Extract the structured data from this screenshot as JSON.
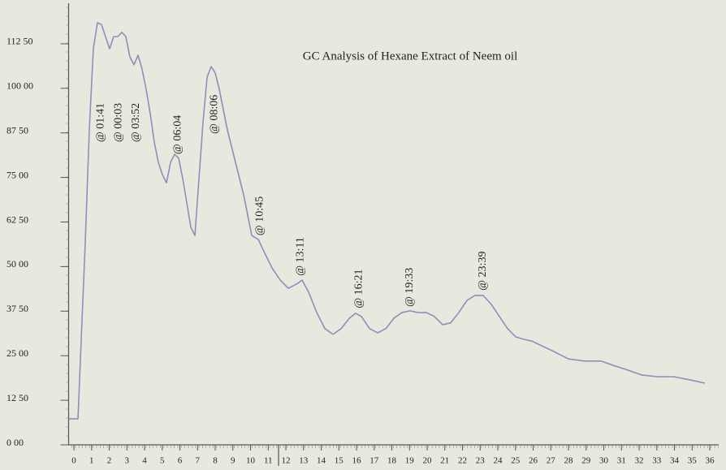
{
  "chart_data": {
    "type": "line",
    "title": "GC Analysis of Hexane Extract of Neem oil",
    "x": [
      -0.28,
      0.23,
      0.41,
      0.64,
      0.87,
      1.1,
      1.33,
      1.56,
      1.79,
      2.02,
      2.25,
      2.48,
      2.71,
      2.94,
      3.17,
      3.4,
      3.63,
      3.86,
      4.09,
      4.32,
      4.55,
      4.78,
      5.01,
      5.24,
      5.47,
      5.7,
      5.93,
      6.16,
      6.39,
      6.62,
      6.85,
      7.08,
      7.31,
      7.54,
      7.77,
      8.0,
      8.23,
      8.69,
      9.15,
      9.61,
      10.07,
      10.44,
      10.76,
      11.22,
      11.68,
      12.14,
      12.6,
      12.92,
      13.29,
      13.75,
      14.21,
      14.67,
      15.13,
      15.59,
      15.95,
      16.28,
      16.74,
      17.2,
      17.66,
      18.11,
      18.57,
      19.03,
      19.49,
      19.95,
      20.41,
      20.87,
      21.33,
      21.79,
      22.25,
      22.71,
      23.17,
      23.63,
      24.09,
      24.55,
      25.01,
      25.47,
      25.93,
      26.39,
      27.08,
      28.0,
      28.92,
      29.84,
      30.53,
      31.22,
      32.14,
      33.06,
      33.98,
      34.9,
      35.72
    ],
    "series": [
      {
        "color": "#8b90bb",
        "values": [
          7.3,
          7.3,
          29.1,
          56.5,
          88.3,
          111.1,
          118.4,
          117.9,
          114.5,
          111.1,
          114.5,
          114.5,
          115.7,
          114.5,
          108.8,
          106.6,
          109.3,
          105.4,
          99.7,
          92.9,
          84.9,
          79.2,
          75.8,
          73.5,
          79.2,
          81.5,
          80.4,
          74.7,
          67.9,
          61.0,
          58.7,
          74.7,
          90.6,
          103.1,
          106.1,
          104.3,
          99.7,
          88.3,
          79.2,
          70.1,
          58.7,
          57.6,
          54.2,
          49.6,
          46.2,
          43.9,
          45.1,
          46.2,
          42.8,
          37.1,
          32.6,
          31.0,
          32.6,
          35.5,
          36.9,
          36.0,
          32.6,
          31.4,
          32.6,
          35.5,
          37.1,
          37.6,
          37.1,
          37.1,
          36.0,
          33.7,
          34.2,
          37.1,
          40.5,
          41.9,
          41.9,
          39.4,
          36.0,
          32.6,
          30.3,
          29.6,
          29.1,
          28.0,
          26.4,
          24.1,
          23.5,
          23.5,
          22.3,
          21.2,
          19.6,
          19.1,
          19.1,
          18.2,
          17.3
        ]
      }
    ],
    "annotations": [
      {
        "text": "@ 01:41",
        "x": 1.52,
        "y": 84.9
      },
      {
        "text": "@ 00:03",
        "x": 2.53,
        "y": 84.9
      },
      {
        "text": "@ 03:52",
        "x": 3.54,
        "y": 84.9
      },
      {
        "text": "@ 06:04",
        "x": 5.89,
        "y": 81.5
      },
      {
        "text": "@ 08:06",
        "x": 7.96,
        "y": 87.2
      },
      {
        "text": "@ 10:45",
        "x": 10.53,
        "y": 58.7
      },
      {
        "text": "@ 13:11",
        "x": 12.83,
        "y": 47.4
      },
      {
        "text": "@ 16:21",
        "x": 16.14,
        "y": 38.3
      },
      {
        "text": "@ 19:33",
        "x": 19.03,
        "y": 38.7
      },
      {
        "text": "@ 23:39",
        "x": 23.17,
        "y": 43.3
      }
    ],
    "xlim": [
      -0.3,
      36.5
    ],
    "xticks": [
      0,
      1,
      2,
      3,
      4,
      5,
      6,
      7,
      8,
      9,
      10,
      11,
      12,
      13,
      14,
      15,
      16,
      17,
      18,
      19,
      20,
      21,
      22,
      23,
      24,
      25,
      26,
      27,
      28,
      29,
      30,
      31,
      32,
      33,
      34,
      35,
      36
    ],
    "ylim": [
      0,
      123
    ],
    "yticks": [
      {
        "value": 0,
        "label": "0 00"
      },
      {
        "value": 12.5,
        "label": "12 50"
      },
      {
        "value": 25,
        "label": "25 00"
      },
      {
        "value": 37.5,
        "label": "37 50"
      },
      {
        "value": 50,
        "label": "50 00"
      },
      {
        "value": 62.5,
        "label": "62 50"
      },
      {
        "value": 75,
        "label": "75 00"
      },
      {
        "value": 87.5,
        "label": "87 50"
      },
      {
        "value": 100,
        "label": "100 00"
      },
      {
        "value": 112.5,
        "label": "112 50"
      }
    ]
  }
}
